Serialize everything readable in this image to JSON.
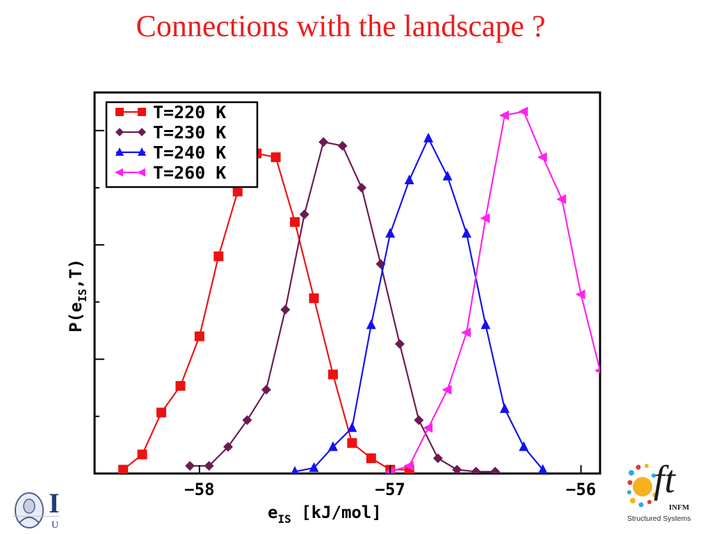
{
  "slide": {
    "title": "Connections with the landscape ?"
  },
  "chart_data": {
    "type": "line",
    "xlabel_main": "e",
    "xlabel_sub": "IS",
    "xlabel_units": " [kJ/mol]",
    "ylabel_pre": "P(e",
    "ylabel_sub": "IS",
    "ylabel_post": ",T)",
    "xlim": [
      -58.55,
      -55.9
    ],
    "x_ticks": [
      -58,
      -57,
      -56
    ],
    "x_tick_labels": [
      "−58",
      "−57",
      "−56"
    ],
    "ylim": [
      0,
      1
    ],
    "y_ticks": [
      0.15,
      0.3,
      0.45,
      0.6,
      0.75,
      0.9
    ],
    "y_tick_labels": [],
    "grid": false,
    "legend_position": "top-left",
    "series": [
      {
        "name": "T=220 K",
        "color": "#ee1111",
        "marker": "square",
        "x": [
          -58.4,
          -58.3,
          -58.2,
          -58.1,
          -58.0,
          -57.9,
          -57.8,
          -57.7,
          -57.6,
          -57.5,
          -57.4,
          -57.3,
          -57.2,
          -57.1,
          -57.0,
          -56.9
        ],
        "y": [
          0.01,
          0.05,
          0.16,
          0.23,
          0.36,
          0.57,
          0.74,
          0.84,
          0.83,
          0.66,
          0.46,
          0.26,
          0.08,
          0.04,
          0.01,
          0.01
        ]
      },
      {
        "name": "T=230 K",
        "color": "#6b1b52",
        "marker": "diamond",
        "x": [
          -58.05,
          -57.95,
          -57.85,
          -57.75,
          -57.65,
          -57.55,
          -57.45,
          -57.35,
          -57.25,
          -57.15,
          -57.05,
          -56.95,
          -56.85,
          -56.75,
          -56.65,
          -56.55,
          -56.45
        ],
        "y": [
          0.02,
          0.02,
          0.07,
          0.14,
          0.22,
          0.43,
          0.68,
          0.87,
          0.86,
          0.75,
          0.55,
          0.34,
          0.14,
          0.04,
          0.01,
          0.005,
          0.005
        ],
        "note": ""
      },
      {
        "name": "T=240 K",
        "color": "#1212ee",
        "marker": "triangle-up",
        "x": [
          -57.5,
          -57.4,
          -57.3,
          -57.2,
          -57.1,
          -57.0,
          -56.9,
          -56.8,
          -56.7,
          -56.6,
          -56.5,
          -56.4,
          -56.3,
          -56.2
        ],
        "y": [
          0.005,
          0.015,
          0.07,
          0.12,
          0.39,
          0.63,
          0.77,
          0.88,
          0.78,
          0.63,
          0.39,
          0.17,
          0.07,
          0.01
        ]
      },
      {
        "name": "T=260 K",
        "color": "#ff22ee",
        "marker": "triangle-left",
        "x": [
          -57.0,
          -56.9,
          -56.8,
          -56.7,
          -56.6,
          -56.5,
          -56.4,
          -56.3,
          -56.2,
          -56.1,
          -56.0,
          -55.9
        ],
        "y": [
          0.005,
          0.02,
          0.12,
          0.22,
          0.37,
          0.67,
          0.94,
          0.95,
          0.83,
          0.72,
          0.47,
          0.27
        ]
      }
    ]
  },
  "logos": {
    "left_big_letter": "I",
    "left_small_letter": "U",
    "right_brand": "ft",
    "right_infm": "INFM",
    "right_sub": "Structured Systems"
  }
}
